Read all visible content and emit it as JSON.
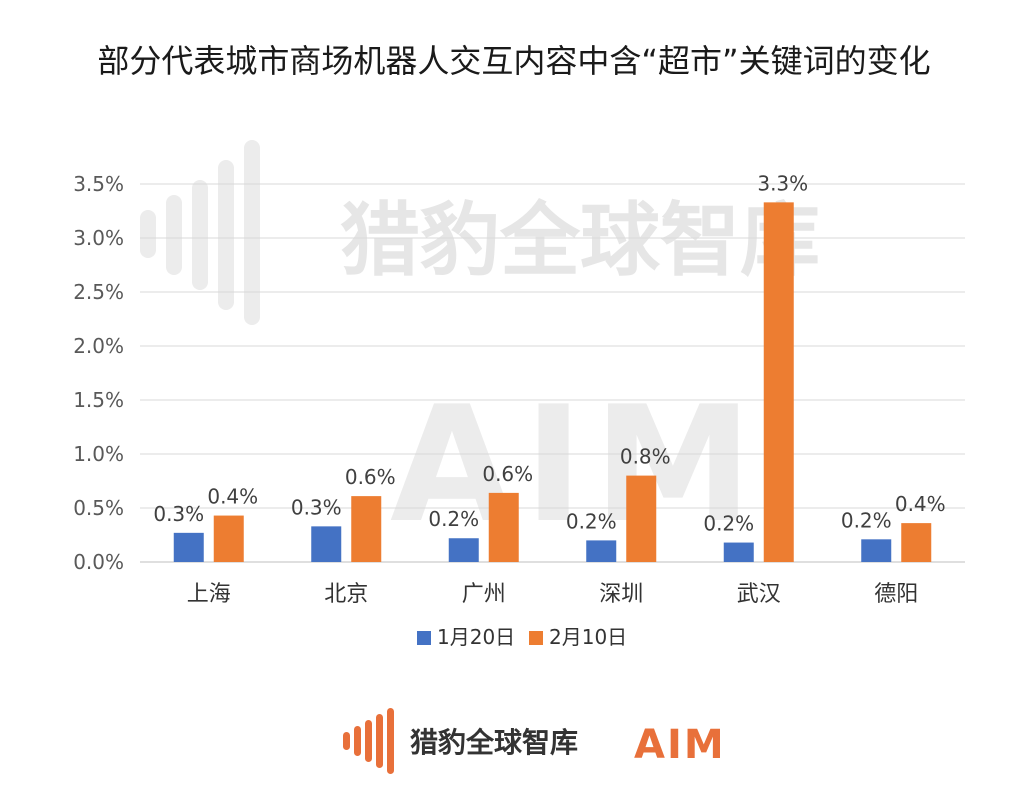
{
  "chart_data": {
    "type": "bar",
    "title": "部分代表城市商场机器人交互内容中含“超市”关键词的变化",
    "categories": [
      "上海",
      "北京",
      "广州",
      "深圳",
      "武汉",
      "德阳"
    ],
    "series": [
      {
        "name": "1月20日",
        "color": "#4472c4",
        "values": [
          0.27,
          0.33,
          0.22,
          0.2,
          0.18,
          0.21
        ],
        "labels": [
          "0.3%",
          "0.3%",
          "0.2%",
          "0.2%",
          "0.2%",
          "0.2%"
        ]
      },
      {
        "name": "2月10日",
        "color": "#ed7d31",
        "values": [
          0.43,
          0.61,
          0.64,
          0.8,
          3.33,
          0.36
        ],
        "labels": [
          "0.4%",
          "0.6%",
          "0.6%",
          "0.8%",
          "3.3%",
          "0.4%"
        ]
      }
    ],
    "ylim": [
      0,
      3.5
    ],
    "yticks": [
      "0.0%",
      "0.5%",
      "1.0%",
      "1.5%",
      "2.0%",
      "2.5%",
      "3.0%",
      "3.5%"
    ],
    "grid": true,
    "legend_position": "bottom"
  },
  "watermark": {
    "brand": "猎豹全球智库",
    "aim": "AIM"
  },
  "footer": {
    "brand": "猎豹全球智库",
    "aim": "AIM"
  }
}
